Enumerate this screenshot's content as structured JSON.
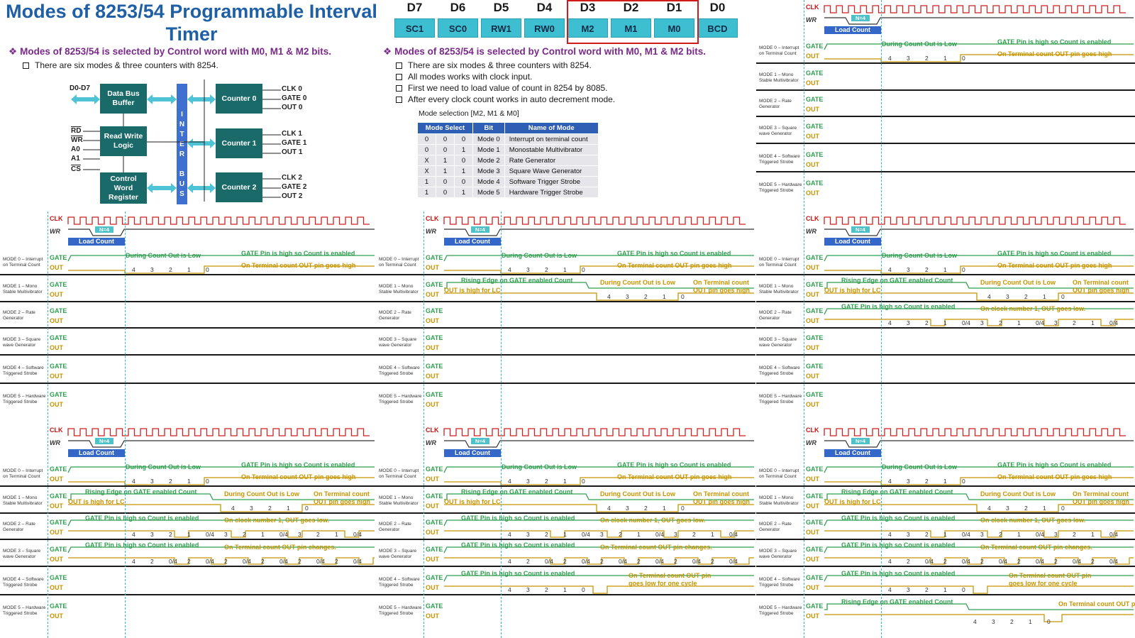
{
  "slide_title": "Modes of 8253/54 Programmable Interval Timer",
  "main_bullet": "Modes of 8253/54 is selected by Control word with M0, M1 & M2 bits.",
  "sub_bullets": [
    "There are six modes & three counters with 8254.",
    "All modes works with clock input.",
    "First we need to load value of count in 8254 by 8085.",
    "After every clock count works in auto decrement mode."
  ],
  "control_word": {
    "bit_labels": [
      "D7",
      "D6",
      "D5",
      "D4",
      "D3",
      "D2",
      "D1",
      "D0"
    ],
    "bit_names": [
      "SC1",
      "SC0",
      "RW1",
      "RW0",
      "M2",
      "M1",
      "M0",
      "BCD"
    ]
  },
  "block_diagram": {
    "data_bus": "D0-D7",
    "data_bus_buffer": "Data Bus Buffer",
    "read_write_logic": "Read Write Logic",
    "control_word_register": "Control Word Register",
    "inter_bus": [
      "I",
      "N",
      "T",
      "E",
      "R",
      "",
      "B",
      "U",
      "S"
    ],
    "rw_pins": [
      "RD",
      "WR",
      "A0",
      "A1",
      "CS"
    ],
    "counters": [
      {
        "name": "Counter 0",
        "pins": [
          "CLK 0",
          "GATE 0",
          "OUT 0"
        ]
      },
      {
        "name": "Counter 1",
        "pins": [
          "CLK 1",
          "GATE 1",
          "OUT 1"
        ]
      },
      {
        "name": "Counter 2",
        "pins": [
          "CLK 2",
          "GATE 2",
          "OUT 2"
        ]
      }
    ]
  },
  "mode_table": {
    "caption": "Mode selection [M2, M1 & M0]",
    "headers": [
      "Mode Select",
      "Bit",
      "Name of Mode"
    ],
    "rows": [
      [
        "0",
        "0",
        "0",
        "Mode 0",
        "Interrupt on terminal count"
      ],
      [
        "0",
        "0",
        "1",
        "Mode 1",
        "Monostable Multivibrator"
      ],
      [
        "X",
        "1",
        "0",
        "Mode 2",
        "Rate Generator"
      ],
      [
        "X",
        "1",
        "1",
        "Mode 3",
        "Square Wave Generator"
      ],
      [
        "1",
        "0",
        "0",
        "Mode 4",
        "Software Trigger Strobe"
      ],
      [
        "1",
        "0",
        "1",
        "Mode 5",
        "Hardware Trigger Strobe"
      ]
    ]
  },
  "timing": {
    "clk": "CLK",
    "wr": "WR",
    "gate": "GATE",
    "out": "OUT",
    "n_value": "N=4",
    "load_count": "Load Count",
    "modes": [
      [
        "MODE 0 – Interrupt",
        "on Terminal Count"
      ],
      [
        "MODE 1 – Mono",
        "Stable Multivibrator"
      ],
      [
        "MODE 2 – Rate",
        "Generator"
      ],
      [
        "MODE 3 – Square",
        "wave Generator"
      ],
      [
        "MODE 4 – Software",
        "Triggered Strobe"
      ],
      [
        "MODE 5 – Hardware",
        "Triggered Strobe"
      ]
    ],
    "mode_text": [
      {
        "g": "GATE Pin is high so Count is enabled",
        "pre": "During Count Out is Low",
        "o": "On Terminal count OUT pin goes high",
        "counts": [
          "4",
          "3",
          "2",
          "1",
          "0"
        ]
      },
      {
        "g": "Rising Edge on GATE enabled Count",
        "pre": "OUT is high for LC",
        "mid": "During Count Out is Low",
        "o1": "On Terminal count",
        "o2": "OUT pin goes high",
        "counts": [
          "4",
          "3",
          "2",
          "1",
          "0"
        ]
      },
      {
        "g": "GATE Pin is high so Count is enabled",
        "o": "On clock number 1, OUT goes low.",
        "counts": [
          "4",
          "3",
          "2",
          "1",
          "0/4",
          "3",
          "2",
          "1",
          "0/4",
          "3",
          "2",
          "1",
          "0/4"
        ]
      },
      {
        "g": "GATE Pin is high so Count is enabled",
        "o": "On Terminal count OUT pin changes.",
        "counts": [
          "4",
          "2",
          "0/4",
          "2",
          "0/4",
          "2",
          "0/4",
          "2",
          "0/4",
          "2",
          "0/4",
          "2",
          "0/4"
        ]
      },
      {
        "g": "GATE Pin is high so Count is enabled",
        "o1": "On Terminal count OUT pin",
        "o2": "goes low for one cycle",
        "counts": [
          "4",
          "3",
          "2",
          "1",
          "0"
        ]
      },
      {
        "g": "Rising Edge on GATE enabled Count",
        "o": "On Terminal count OUT pin goes low for one cycle",
        "counts": [
          "4",
          "3",
          "2",
          "1",
          "0"
        ]
      }
    ]
  }
}
